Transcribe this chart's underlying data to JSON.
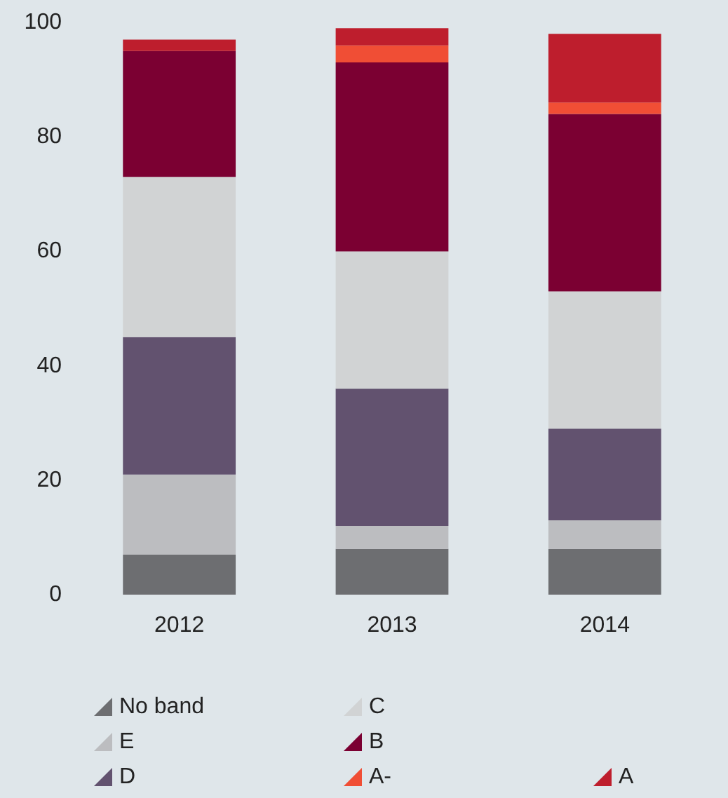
{
  "chart_data": {
    "type": "bar",
    "stacked": true,
    "categories": [
      "2012",
      "2013",
      "2014"
    ],
    "series": [
      {
        "name": "No band",
        "color": "#6d6e71",
        "values": [
          7,
          8,
          8
        ]
      },
      {
        "name": "E",
        "color": "#bcbdc0",
        "values": [
          14,
          4,
          5
        ]
      },
      {
        "name": "D",
        "color": "#62526f",
        "values": [
          24,
          24,
          16
        ]
      },
      {
        "name": "C",
        "color": "#d1d3d4",
        "values": [
          28,
          24,
          24
        ]
      },
      {
        "name": "B",
        "color": "#7b0032",
        "values": [
          22,
          33,
          31
        ]
      },
      {
        "name": "A-",
        "color": "#f04e35",
        "values": [
          null,
          3,
          2
        ]
      },
      {
        "name": "A",
        "color": "#be1e2d",
        "values": [
          2,
          3,
          12
        ]
      }
    ],
    "ylim": [
      0,
      100
    ],
    "yticks": [
      0,
      20,
      40,
      60,
      80,
      100
    ],
    "grid": false,
    "legend": "bottom"
  }
}
